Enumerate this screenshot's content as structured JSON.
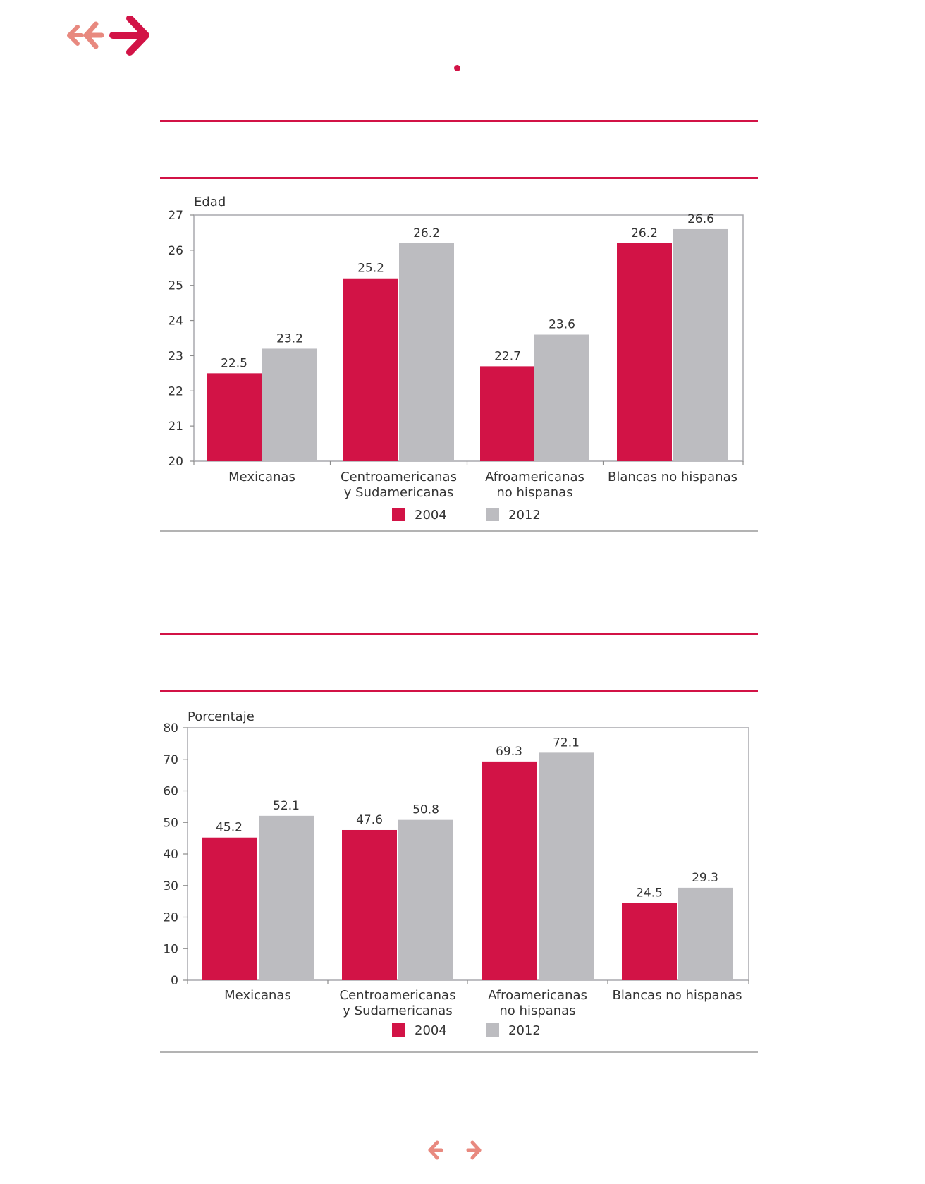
{
  "colors": {
    "accent": "#d21346",
    "accent_light": "#e8897f",
    "series_2004": "#d21346",
    "series_2012": "#bcbcc0",
    "rule_gray": "#b3b3b3",
    "axis": "#8c8c8c"
  },
  "icons": {
    "top_nav": [
      "double-back-arrow-icon",
      "back-arrow-icon",
      "forward-arrow-icon"
    ],
    "bottom_nav": [
      "previous-arrow-icon",
      "next-arrow-icon"
    ]
  },
  "chart_data": [
    {
      "type": "bar",
      "title": "",
      "xlabel": "",
      "ylabel": "Edad",
      "ylim": [
        20,
        27
      ],
      "yticks": [
        20,
        21,
        22,
        23,
        24,
        25,
        26,
        27
      ],
      "categories": [
        [
          "Mexicanas"
        ],
        [
          "Centroamericanas",
          "y Sudamericanas"
        ],
        [
          "Afroamericanas",
          "no hispanas"
        ],
        [
          "Blancas no hispanas"
        ]
      ],
      "series": [
        {
          "name": "2004",
          "values": [
            22.5,
            25.2,
            22.7,
            26.2
          ]
        },
        {
          "name": "2012",
          "values": [
            23.2,
            26.2,
            23.6,
            26.6
          ]
        }
      ],
      "data_labels": [
        [
          "22.5",
          "25.2",
          "22.7",
          "26.2"
        ],
        [
          "23.2",
          "26.2",
          "23.6",
          "26.6"
        ]
      ],
      "legend": "bottom-center",
      "grid": false
    },
    {
      "type": "bar",
      "title": "",
      "xlabel": "",
      "ylabel": "Porcentaje",
      "ylim": [
        0,
        80
      ],
      "yticks": [
        0,
        10,
        20,
        30,
        40,
        50,
        60,
        70,
        80
      ],
      "categories": [
        [
          "Mexicanas"
        ],
        [
          "Centroamericanas",
          "y Sudamericanas"
        ],
        [
          "Afroamericanas",
          "no hispanas"
        ],
        [
          "Blancas no hispanas"
        ]
      ],
      "series": [
        {
          "name": "2004",
          "values": [
            45.2,
            47.6,
            69.3,
            24.5
          ]
        },
        {
          "name": "2012",
          "values": [
            52.1,
            50.8,
            72.1,
            29.3
          ]
        }
      ],
      "data_labels": [
        [
          "45.2",
          "47.6",
          "69.3",
          "24.5"
        ],
        [
          "52.1",
          "50.8",
          "72.1",
          "29.3"
        ]
      ],
      "legend": "bottom-center",
      "grid": false
    }
  ]
}
